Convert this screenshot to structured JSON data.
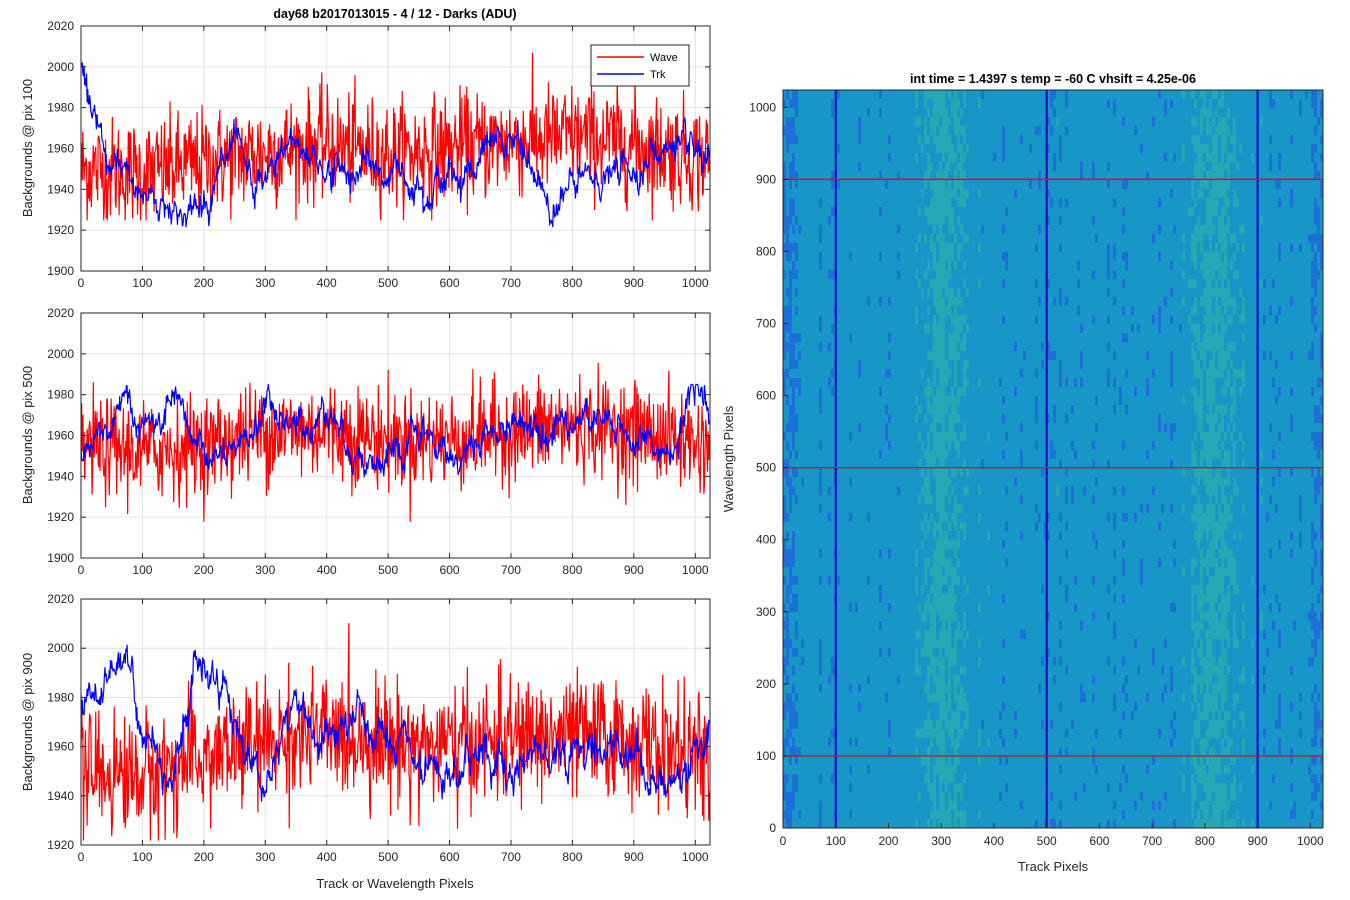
{
  "chart_data": [
    {
      "id": "p1",
      "type": "line",
      "title": "day68 b2017013015 - 4 / 12 - Darks (ADU)",
      "xlabel": "",
      "ylabel": "Backgrounds @ pix 100",
      "xlim": [
        0,
        1024
      ],
      "ylim": [
        1900,
        2020
      ],
      "xticks": [
        0,
        100,
        200,
        300,
        400,
        500,
        600,
        700,
        800,
        900,
        1000
      ],
      "yticks": [
        1900,
        1920,
        1940,
        1960,
        1980,
        2000,
        2020
      ],
      "grid": true,
      "legend": {
        "position": "top-right",
        "entries": [
          "Wave",
          "Trk"
        ]
      },
      "series": [
        {
          "name": "Wave",
          "color": "#ff0000",
          "trend": [
            [
              0,
              1950
            ],
            [
              100,
              1948
            ],
            [
              200,
              1953
            ],
            [
              300,
              1958
            ],
            [
              400,
              1962
            ],
            [
              500,
              1957
            ],
            [
              600,
              1960
            ],
            [
              700,
              1963
            ],
            [
              800,
              1966
            ],
            [
              900,
              1962
            ],
            [
              1024,
              1955
            ]
          ],
          "noise_sd": 13,
          "min": 1925,
          "max": 2008
        },
        {
          "name": "Trk",
          "color": "#0000ff",
          "trend": [
            [
              0,
              2000
            ],
            [
              10,
              1990
            ],
            [
              40,
              1950
            ],
            [
              100,
              1938
            ],
            [
              180,
              1928
            ],
            [
              250,
              1958
            ],
            [
              280,
              1935
            ],
            [
              350,
              1965
            ],
            [
              400,
              1950
            ],
            [
              500,
              1948
            ],
            [
              600,
              1945
            ],
            [
              700,
              1965
            ],
            [
              760,
              1935
            ],
            [
              840,
              1945
            ],
            [
              900,
              1950
            ],
            [
              960,
              1962
            ],
            [
              1024,
              1945
            ]
          ],
          "noise_sd": 5,
          "min": 1916,
          "max": 2002
        }
      ]
    },
    {
      "id": "p2",
      "type": "line",
      "title": "",
      "xlabel": "",
      "ylabel": "Backgrounds @ pix 500",
      "xlim": [
        0,
        1024
      ],
      "ylim": [
        1900,
        2020
      ],
      "xticks": [
        0,
        100,
        200,
        300,
        400,
        500,
        600,
        700,
        800,
        900,
        1000
      ],
      "yticks": [
        1900,
        1920,
        1940,
        1960,
        1980,
        2000,
        2020
      ],
      "grid": true,
      "series": [
        {
          "name": "Wave",
          "color": "#ff0000",
          "trend": [
            [
              0,
              1955
            ],
            [
              100,
              1952
            ],
            [
              200,
              1955
            ],
            [
              300,
              1962
            ],
            [
              400,
              1963
            ],
            [
              500,
              1958
            ],
            [
              600,
              1958
            ],
            [
              700,
              1962
            ],
            [
              800,
              1965
            ],
            [
              900,
              1962
            ],
            [
              1024,
              1955
            ]
          ],
          "noise_sd": 12,
          "min": 1918,
          "max": 2016
        },
        {
          "name": "Trk",
          "color": "#0000ff",
          "trend": [
            [
              0,
              1950
            ],
            [
              50,
              1960
            ],
            [
              80,
              1978
            ],
            [
              100,
              1962
            ],
            [
              150,
              1968
            ],
            [
              200,
              1952
            ],
            [
              250,
              1945
            ],
            [
              300,
              1975
            ],
            [
              350,
              1962
            ],
            [
              400,
              1975
            ],
            [
              450,
              1952
            ],
            [
              500,
              1942
            ],
            [
              550,
              1958
            ],
            [
              600,
              1950
            ],
            [
              700,
              1965
            ],
            [
              800,
              1972
            ],
            [
              900,
              1958
            ],
            [
              960,
              1950
            ],
            [
              1000,
              1978
            ],
            [
              1024,
              1972
            ]
          ],
          "noise_sd": 5,
          "min": 1928,
          "max": 1985
        }
      ]
    },
    {
      "id": "p3",
      "type": "line",
      "title": "",
      "xlabel": "Track or Wavelength Pixels",
      "ylabel": "Backgrounds @ pix 900",
      "xlim": [
        0,
        1024
      ],
      "ylim": [
        1920,
        2020
      ],
      "xticks": [
        0,
        100,
        200,
        300,
        400,
        500,
        600,
        700,
        800,
        900,
        1000
      ],
      "yticks": [
        1920,
        1940,
        1960,
        1980,
        2000,
        2020
      ],
      "grid": true,
      "series": [
        {
          "name": "Wave",
          "color": "#ff0000",
          "trend": [
            [
              0,
              1950
            ],
            [
              100,
              1948
            ],
            [
              200,
              1955
            ],
            [
              300,
              1962
            ],
            [
              400,
              1965
            ],
            [
              500,
              1962
            ],
            [
              600,
              1960
            ],
            [
              700,
              1963
            ],
            [
              800,
              1965
            ],
            [
              900,
              1962
            ],
            [
              1024,
              1955
            ]
          ],
          "noise_sd": 12,
          "min": 1922,
          "max": 2010
        },
        {
          "name": "Trk",
          "color": "#0000ff",
          "trend": [
            [
              0,
              1975
            ],
            [
              40,
              1985
            ],
            [
              75,
              2002
            ],
            [
              100,
              1965
            ],
            [
              150,
              1950
            ],
            [
              190,
              1995
            ],
            [
              230,
              1988
            ],
            [
              260,
              1962
            ],
            [
              300,
              1945
            ],
            [
              350,
              1980
            ],
            [
              400,
              1958
            ],
            [
              450,
              1970
            ],
            [
              500,
              1960
            ],
            [
              600,
              1940
            ],
            [
              650,
              1962
            ],
            [
              700,
              1950
            ],
            [
              750,
              1962
            ],
            [
              800,
              1958
            ],
            [
              900,
              1962
            ],
            [
              950,
              1940
            ],
            [
              1000,
              1962
            ],
            [
              1024,
              1972
            ]
          ],
          "noise_sd": 5,
          "min": 1930,
          "max": 2005
        }
      ]
    },
    {
      "id": "img",
      "type": "heatmap",
      "title": "int time = 1.4397 s    temp = -60 C    vhsift = 4.25e-06",
      "xlabel": "Track Pixels",
      "ylabel": "Wavelength Pixels",
      "xlim": [
        0,
        1024
      ],
      "ylim": [
        0,
        1024
      ],
      "xticks": [
        0,
        100,
        200,
        300,
        400,
        500,
        600,
        700,
        800,
        900,
        1000
      ],
      "yticks": [
        0,
        100,
        200,
        300,
        400,
        500,
        600,
        700,
        800,
        900,
        1000
      ],
      "grid": false,
      "colormap": [
        "#1e6fd6",
        "#1896c8",
        "#26a8b4",
        "#63b98f",
        "#a7c771"
      ],
      "bright_bands_x": [
        [
          250,
          360
        ],
        [
          760,
          880
        ]
      ],
      "overlay_lines": {
        "vertical": {
          "color": "#0000cc",
          "x": [
            100,
            500,
            900
          ]
        },
        "horizontal": {
          "color": "#cc1a1a",
          "y": [
            100,
            500,
            900
          ]
        }
      }
    }
  ]
}
